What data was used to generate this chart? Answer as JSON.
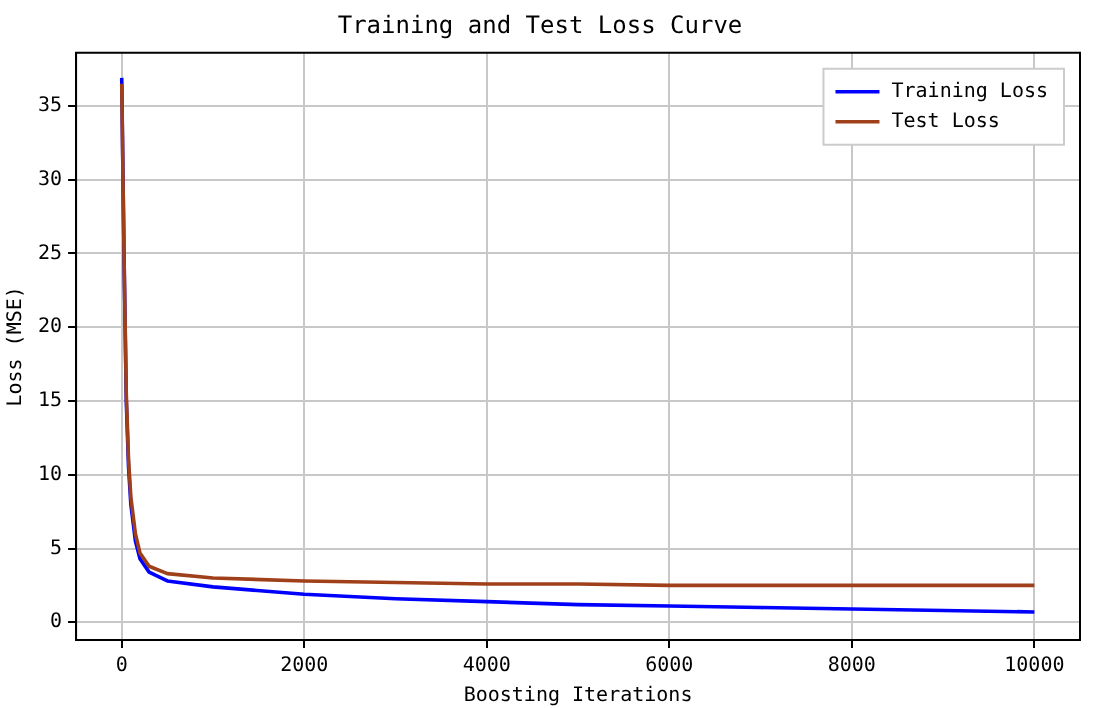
{
  "chart_data": {
    "type": "line",
    "title": "Training and Test Loss Curve",
    "xlabel": "Boosting Iterations",
    "ylabel": "Loss (MSE)",
    "x": [
      0,
      25,
      50,
      75,
      100,
      150,
      200,
      300,
      500,
      1000,
      2000,
      3000,
      4000,
      5000,
      6000,
      7000,
      8000,
      9000,
      10000
    ],
    "series": [
      {
        "name": "Training Loss",
        "color": "#0000ff",
        "values": [
          36.9,
          25,
          15,
          10.5,
          8,
          5.5,
          4.3,
          3.4,
          2.8,
          2.4,
          1.9,
          1.6,
          1.4,
          1.2,
          1.1,
          1.0,
          0.9,
          0.8,
          0.7
        ]
      },
      {
        "name": "Test Loss",
        "color": "#a0401a",
        "values": [
          36.5,
          25,
          15.5,
          11,
          8.5,
          6,
          4.7,
          3.8,
          3.3,
          3.0,
          2.8,
          2.7,
          2.6,
          2.6,
          2.5,
          2.5,
          2.5,
          2.5,
          2.5
        ]
      }
    ],
    "xlim": [
      -500,
      10500
    ],
    "xticks": [
      0,
      2000,
      4000,
      6000,
      8000,
      10000
    ],
    "ylim": [
      -1.2,
      38.6
    ],
    "yticks": [
      0,
      5,
      10,
      15,
      20,
      25,
      30,
      35
    ],
    "grid": true,
    "legend": "top right",
    "line_style": "solid",
    "marker": "none"
  }
}
